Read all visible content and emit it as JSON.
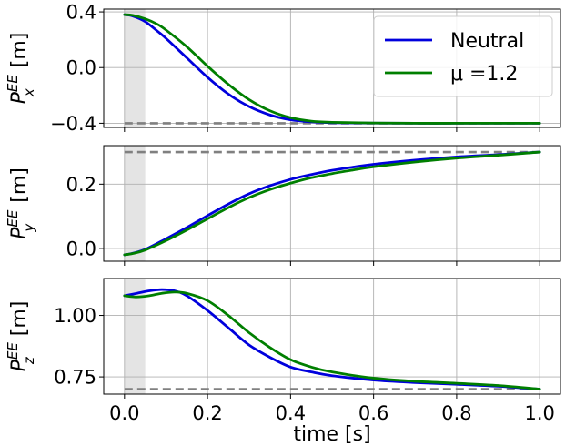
{
  "chart_data": {
    "type": "line",
    "xlabel": "time [s]",
    "xlim": [
      -0.05,
      1.05
    ],
    "x_ticks": [
      "0.0",
      "0.2",
      "0.4",
      "0.6",
      "0.8",
      "1.0"
    ],
    "x_tick_values": [
      0.0,
      0.2,
      0.4,
      0.6,
      0.8,
      1.0
    ],
    "shaded_interval": [
      0.0,
      0.05
    ],
    "grid": true,
    "legend": {
      "placement": "top-right of first panel",
      "entries": [
        {
          "name": "Neutral",
          "color": "#0000dd"
        },
        {
          "name": "μ =1.2",
          "color": "#007f00"
        }
      ]
    },
    "panels": [
      {
        "id": "px",
        "ylabel": "P_x^EE [m]",
        "ylabel_main": "P",
        "ylabel_sup": "EE",
        "ylabel_sub": "x",
        "ylabel_unit": "[m]",
        "ylim": [
          -0.43,
          0.42
        ],
        "y_ticks": [
          "0.4",
          "0.0",
          "−0.4"
        ],
        "y_tick_values": [
          0.4,
          0.0,
          -0.4
        ],
        "target": -0.4,
        "series": [
          {
            "name": "Neutral",
            "color": "#0000dd",
            "x": [
              0,
              0.02,
              0.05,
              0.08,
              0.1,
              0.15,
              0.2,
              0.25,
              0.3,
              0.35,
              0.4,
              0.45,
              0.5,
              0.6,
              0.7,
              0.8,
              0.9,
              1.0
            ],
            "y": [
              0.38,
              0.37,
              0.33,
              0.26,
              0.21,
              0.07,
              -0.07,
              -0.19,
              -0.28,
              -0.34,
              -0.375,
              -0.39,
              -0.396,
              -0.399,
              -0.4,
              -0.4,
              -0.4,
              -0.4
            ]
          },
          {
            "name": "μ =1.2",
            "color": "#007f00",
            "x": [
              0,
              0.02,
              0.05,
              0.08,
              0.1,
              0.15,
              0.2,
              0.25,
              0.3,
              0.35,
              0.4,
              0.45,
              0.5,
              0.6,
              0.7,
              0.8,
              0.9,
              1.0
            ],
            "y": [
              0.38,
              0.375,
              0.35,
              0.31,
              0.27,
              0.15,
              0.01,
              -0.12,
              -0.23,
              -0.31,
              -0.36,
              -0.385,
              -0.393,
              -0.398,
              -0.4,
              -0.4,
              -0.4,
              -0.4
            ]
          }
        ]
      },
      {
        "id": "py",
        "ylabel": "P_y^EE [m]",
        "ylabel_main": "P",
        "ylabel_sup": "EE",
        "ylabel_sub": "y",
        "ylabel_unit": "[m]",
        "ylim": [
          -0.04,
          0.32
        ],
        "y_ticks": [
          "0.2",
          "0.0"
        ],
        "y_tick_values": [
          0.2,
          0.0
        ],
        "target": 0.3,
        "series": [
          {
            "name": "Neutral",
            "color": "#0000dd",
            "x": [
              0,
              0.02,
              0.05,
              0.1,
              0.15,
              0.2,
              0.25,
              0.3,
              0.35,
              0.4,
              0.45,
              0.5,
              0.55,
              0.6,
              0.7,
              0.8,
              0.9,
              1.0
            ],
            "y": [
              -0.02,
              -0.015,
              -0.003,
              0.03,
              0.065,
              0.102,
              0.138,
              0.17,
              0.195,
              0.215,
              0.23,
              0.243,
              0.253,
              0.262,
              0.275,
              0.285,
              0.292,
              0.3
            ]
          },
          {
            "name": "μ =1.2",
            "color": "#007f00",
            "x": [
              0,
              0.02,
              0.05,
              0.1,
              0.15,
              0.2,
              0.25,
              0.3,
              0.35,
              0.4,
              0.45,
              0.5,
              0.55,
              0.6,
              0.7,
              0.8,
              0.9,
              1.0
            ],
            "y": [
              -0.02,
              -0.016,
              -0.005,
              0.024,
              0.057,
              0.092,
              0.127,
              0.158,
              0.183,
              0.203,
              0.22,
              0.233,
              0.244,
              0.254,
              0.269,
              0.281,
              0.29,
              0.3
            ]
          }
        ]
      },
      {
        "id": "pz",
        "ylabel": "P_z^EE [m]",
        "ylabel_main": "P",
        "ylabel_sup": "EE",
        "ylabel_sub": "z",
        "ylabel_unit": "[m]",
        "ylim": [
          0.68,
          1.15
        ],
        "y_ticks": [
          "1.00",
          "0.75"
        ],
        "y_tick_values": [
          1.0,
          0.75
        ],
        "target": 0.7,
        "series": [
          {
            "name": "Neutral",
            "color": "#0000dd",
            "x": [
              0,
              0.03,
              0.06,
              0.09,
              0.12,
              0.15,
              0.2,
              0.25,
              0.3,
              0.35,
              0.4,
              0.45,
              0.5,
              0.6,
              0.7,
              0.8,
              0.9,
              1.0
            ],
            "y": [
              1.08,
              1.09,
              1.1,
              1.105,
              1.1,
              1.08,
              1.02,
              0.95,
              0.88,
              0.83,
              0.79,
              0.77,
              0.755,
              0.737,
              0.727,
              0.72,
              0.712,
              0.7
            ]
          },
          {
            "name": "μ =1.2",
            "color": "#007f00",
            "x": [
              0,
              0.03,
              0.06,
              0.09,
              0.12,
              0.15,
              0.2,
              0.25,
              0.3,
              0.35,
              0.4,
              0.45,
              0.5,
              0.6,
              0.7,
              0.8,
              0.9,
              1.0
            ],
            "y": [
              1.08,
              1.075,
              1.08,
              1.09,
              1.095,
              1.09,
              1.06,
              1.0,
              0.93,
              0.87,
              0.82,
              0.79,
              0.77,
              0.745,
              0.732,
              0.724,
              0.715,
              0.7
            ]
          }
        ]
      }
    ]
  }
}
